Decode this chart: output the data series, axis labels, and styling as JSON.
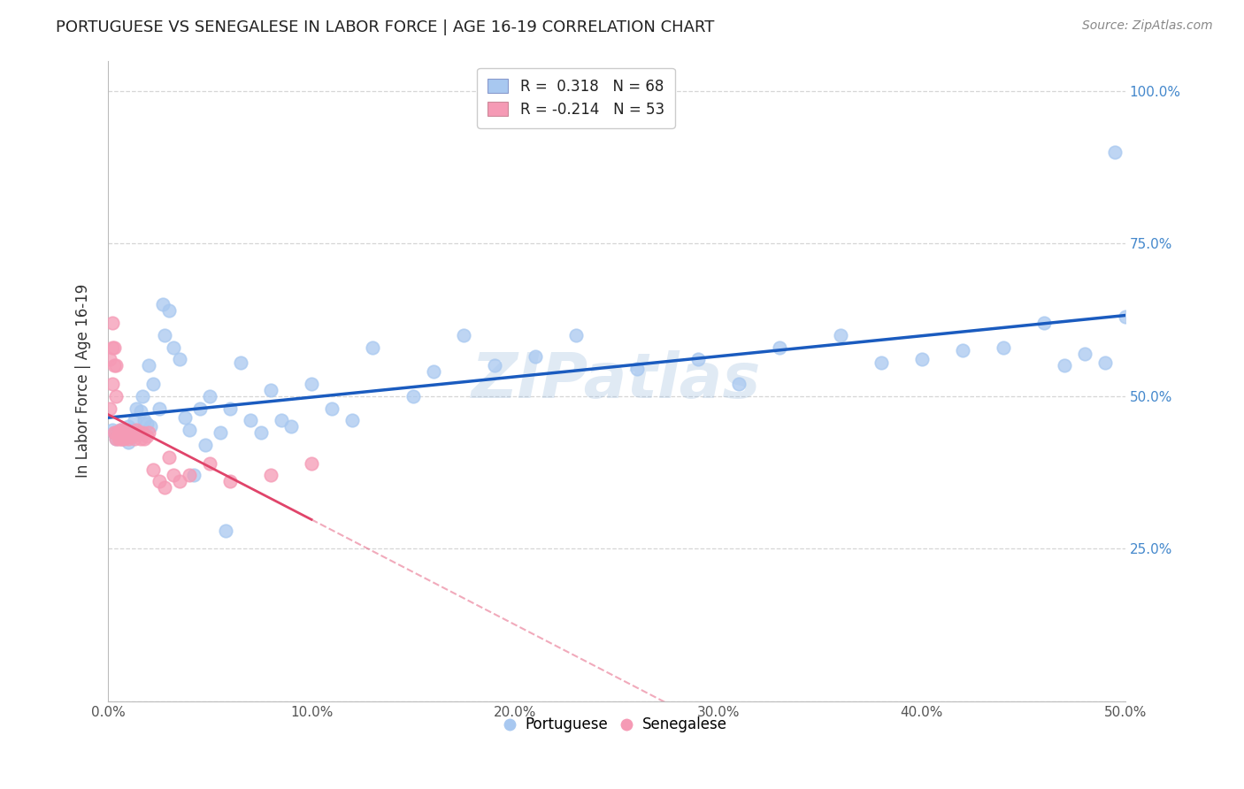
{
  "title": "PORTUGUESE VS SENEGALESE IN LABOR FORCE | AGE 16-19 CORRELATION CHART",
  "source": "Source: ZipAtlas.com",
  "ylabel": "In Labor Force | Age 16-19",
  "xlim": [
    0.0,
    0.5
  ],
  "ylim": [
    0.0,
    1.05
  ],
  "xtick_vals": [
    0.0,
    0.1,
    0.2,
    0.3,
    0.4,
    0.5
  ],
  "xtick_labels": [
    "0.0%",
    "10.0%",
    "20.0%",
    "30.0%",
    "40.0%",
    "50.0%"
  ],
  "ytick_vals": [
    0.0,
    0.25,
    0.5,
    0.75,
    1.0
  ],
  "ytick_labels_right": [
    "",
    "25.0%",
    "50.0%",
    "75.0%",
    "100.0%"
  ],
  "portuguese_R": 0.318,
  "portuguese_N": 68,
  "senegalese_R": -0.214,
  "senegalese_N": 53,
  "portuguese_color": "#a8c8f0",
  "senegalese_color": "#f59ab5",
  "portuguese_line_color": "#1a5bbf",
  "senegalese_line_color": "#e0446a",
  "watermark": "ZIPatlas",
  "portuguese_x": [
    0.002,
    0.003,
    0.004,
    0.005,
    0.006,
    0.007,
    0.008,
    0.009,
    0.01,
    0.01,
    0.011,
    0.012,
    0.013,
    0.014,
    0.015,
    0.016,
    0.017,
    0.018,
    0.019,
    0.02,
    0.021,
    0.022,
    0.025,
    0.027,
    0.028,
    0.03,
    0.032,
    0.035,
    0.038,
    0.04,
    0.042,
    0.045,
    0.048,
    0.05,
    0.055,
    0.058,
    0.06,
    0.065,
    0.07,
    0.075,
    0.08,
    0.085,
    0.09,
    0.1,
    0.11,
    0.12,
    0.13,
    0.15,
    0.16,
    0.175,
    0.19,
    0.21,
    0.23,
    0.26,
    0.29,
    0.31,
    0.33,
    0.36,
    0.38,
    0.4,
    0.42,
    0.44,
    0.46,
    0.47,
    0.48,
    0.49,
    0.495,
    0.5
  ],
  "portuguese_y": [
    0.445,
    0.44,
    0.43,
    0.44,
    0.445,
    0.43,
    0.44,
    0.435,
    0.425,
    0.45,
    0.44,
    0.445,
    0.46,
    0.48,
    0.44,
    0.475,
    0.5,
    0.46,
    0.455,
    0.55,
    0.45,
    0.52,
    0.48,
    0.65,
    0.6,
    0.64,
    0.58,
    0.56,
    0.465,
    0.445,
    0.37,
    0.48,
    0.42,
    0.5,
    0.44,
    0.28,
    0.48,
    0.555,
    0.46,
    0.44,
    0.51,
    0.46,
    0.45,
    0.52,
    0.48,
    0.46,
    0.58,
    0.5,
    0.54,
    0.6,
    0.55,
    0.565,
    0.6,
    0.545,
    0.56,
    0.52,
    0.58,
    0.6,
    0.555,
    0.56,
    0.575,
    0.58,
    0.62,
    0.55,
    0.57,
    0.555,
    0.9,
    0.63
  ],
  "senegalese_x": [
    0.001,
    0.001,
    0.002,
    0.002,
    0.002,
    0.003,
    0.003,
    0.003,
    0.004,
    0.004,
    0.004,
    0.004,
    0.005,
    0.005,
    0.005,
    0.006,
    0.006,
    0.007,
    0.007,
    0.007,
    0.008,
    0.008,
    0.008,
    0.008,
    0.009,
    0.009,
    0.009,
    0.01,
    0.01,
    0.01,
    0.011,
    0.011,
    0.012,
    0.012,
    0.013,
    0.014,
    0.015,
    0.016,
    0.017,
    0.018,
    0.019,
    0.02,
    0.022,
    0.025,
    0.028,
    0.03,
    0.032,
    0.035,
    0.04,
    0.05,
    0.06,
    0.08,
    0.1
  ],
  "senegalese_y": [
    0.48,
    0.56,
    0.52,
    0.58,
    0.62,
    0.55,
    0.44,
    0.58,
    0.5,
    0.55,
    0.44,
    0.43,
    0.44,
    0.435,
    0.43,
    0.445,
    0.43,
    0.435,
    0.44,
    0.43,
    0.44,
    0.445,
    0.435,
    0.43,
    0.44,
    0.435,
    0.44,
    0.435,
    0.44,
    0.43,
    0.44,
    0.435,
    0.44,
    0.435,
    0.43,
    0.445,
    0.44,
    0.43,
    0.44,
    0.43,
    0.435,
    0.44,
    0.38,
    0.36,
    0.35,
    0.4,
    0.37,
    0.36,
    0.37,
    0.39,
    0.36,
    0.37,
    0.39
  ]
}
